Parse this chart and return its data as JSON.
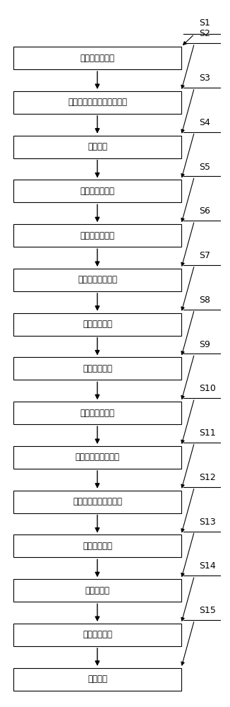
{
  "steps": [
    {
      "label": "导数法初步寻峰",
      "step_id": "S2"
    },
    {
      "label": "爬坡法搜索峰位左右边界点",
      "step_id": "S3"
    },
    {
      "label": "寻找峰位",
      "step_id": "S4"
    },
    {
      "label": "寻找右边峰谷点",
      "step_id": "S5"
    },
    {
      "label": "寻找左边峰谷点",
      "step_id": "S6"
    },
    {
      "label": "确定左右索引峰点",
      "step_id": "S7"
    },
    {
      "label": "确定左侧峰点",
      "step_id": "S8"
    },
    {
      "label": "确定右侧峰点",
      "step_id": "S9"
    },
    {
      "label": "判断边界合理性",
      "step_id": "S10"
    },
    {
      "label": "判断正确，搜索结束",
      "step_id": "S11"
    },
    {
      "label": "判断错误，开始新循环",
      "step_id": "S12"
    },
    {
      "label": "确定新右锋点",
      "step_id": "S13"
    },
    {
      "label": "确定右边界",
      "step_id": "S14"
    },
    {
      "label": "消除基线穿透",
      "step_id": "S15"
    },
    {
      "label": "结果转换",
      "step_id": ""
    }
  ],
  "s1_label": "S1",
  "box_facecolor": "#ffffff",
  "box_edgecolor": "#000000",
  "arrow_color": "#000000",
  "text_color": "#000000",
  "step_label_color": "#000000",
  "fig_width": 3.26,
  "fig_height": 10.0,
  "dpi": 100
}
